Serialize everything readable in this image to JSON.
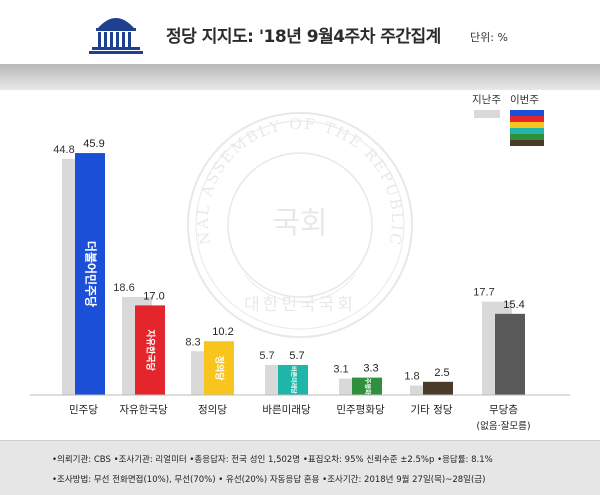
{
  "header": {
    "title": "정당 지지도: '18년 9월4주차 주간집계",
    "unit": "단위: %"
  },
  "legend": {
    "prev_label": "지난주",
    "curr_label": "이번주"
  },
  "chart_data": {
    "type": "bar",
    "title": "정당 지지도: '18년 9월4주차 주간집계",
    "ylabel": "",
    "ylim": [
      0,
      48
    ],
    "categories": [
      "민주당",
      "자유한국당",
      "정의당",
      "바른미래당",
      "민주평화당",
      "기타 정당",
      "무당층"
    ],
    "category_sublabels": [
      "",
      "",
      "",
      "",
      "",
      "",
      "(없음·잘모름)"
    ],
    "series": [
      {
        "name": "지난주",
        "values": [
          44.8,
          18.6,
          8.3,
          5.7,
          3.1,
          1.8,
          17.7
        ],
        "color": "#d9d9d9"
      },
      {
        "name": "이번주",
        "values": [
          45.9,
          17.0,
          10.2,
          5.7,
          3.3,
          2.5,
          15.4
        ],
        "colors": [
          "#1b4fd8",
          "#e5252c",
          "#f7c51e",
          "#1fb5a8",
          "#2f8f3c",
          "#4a3a28",
          "#595959"
        ]
      }
    ],
    "party_logos": [
      "더불어민주당",
      "자유한국당",
      "정의당",
      "바른미래당",
      "민주평화당",
      "",
      ""
    ],
    "legend_position": "top-right",
    "grid": false
  },
  "footer": {
    "line1": "•의뢰기관: CBS  •조사기관: 리얼미터  •총응답자: 전국 성인 1,502명  •표집오차: 95% 신뢰수준 ±2.5%p  •응답률: 8.1%",
    "line2": "•조사방법: 무선 전화면접(10%), 무선(70%) • 유선(20%)  자동응답 혼용  •조사기간: 2018년 9월 27일(목)~28일(금)"
  },
  "watermark": {
    "text_outer": "THE NATIONAL ASSEMBLY OF THE REPUBLIC OF KOREA",
    "text_center": "국회",
    "text_bottom": "대한민국국회"
  },
  "colors": {
    "prev_bar": "#d9d9d9",
    "legend_stripes": [
      "#1b4fd8",
      "#e5252c",
      "#f7c51e",
      "#1fb5a8",
      "#2f8f3c",
      "#4a3a28"
    ]
  }
}
